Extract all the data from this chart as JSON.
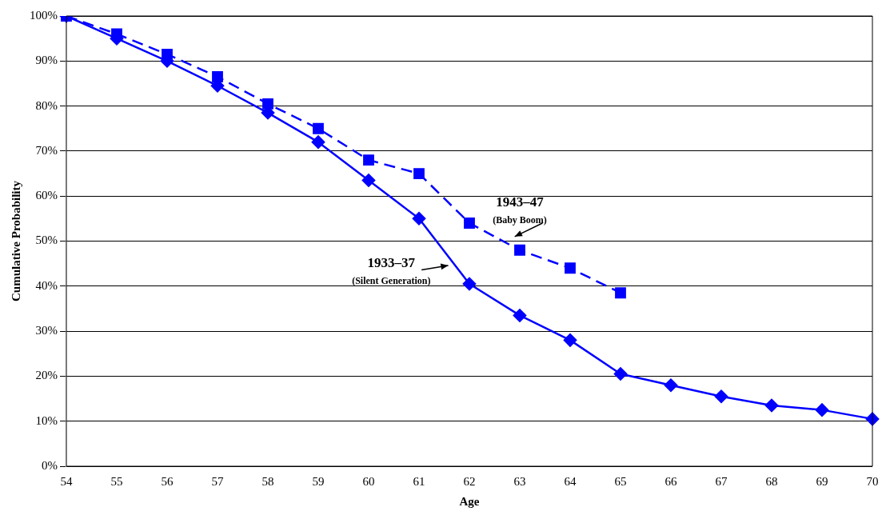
{
  "chart_data": {
    "type": "line",
    "xlabel": "Age",
    "ylabel": "Cumulative Probability",
    "categories": [
      "54",
      "55",
      "56",
      "57",
      "58",
      "59",
      "60",
      "61",
      "62",
      "63",
      "64",
      "65",
      "66",
      "67",
      "68",
      "69",
      "70"
    ],
    "series": [
      {
        "name": "1933–37",
        "color": "#0000ff",
        "marker": "diamond",
        "line_style": "solid",
        "values": [
          100,
          95,
          90,
          84.5,
          78.5,
          72,
          63.5,
          55,
          40.5,
          33.5,
          28,
          20.5,
          18,
          15.5,
          13.5,
          12.5,
          10.5
        ]
      },
      {
        "name": "1943–47",
        "color": "#0000ff",
        "marker": "square",
        "line_style": "dashed",
        "values": [
          100,
          96,
          91.5,
          86.5,
          80.5,
          75,
          68,
          65,
          54,
          48,
          44,
          38.5,
          null,
          null,
          null,
          null,
          null
        ]
      }
    ],
    "annotations": [
      "(Silent Generation)",
      "(Baby Boom)"
    ],
    "ylim": [
      0,
      100
    ],
    "yticks": [
      {
        "value": 0,
        "label": "0%"
      },
      {
        "value": 10,
        "label": "10%"
      },
      {
        "value": 20,
        "label": "20%"
      },
      {
        "value": 30,
        "label": "30%"
      },
      {
        "value": 40,
        "label": "40%"
      },
      {
        "value": 50,
        "label": "50%"
      },
      {
        "value": 60,
        "label": "60%"
      },
      {
        "value": 70,
        "label": "70%"
      },
      {
        "value": 80,
        "label": "80%"
      },
      {
        "value": 90,
        "label": "90%"
      },
      {
        "value": 100,
        "label": "100%"
      }
    ],
    "grid": "y",
    "legend": false
  }
}
